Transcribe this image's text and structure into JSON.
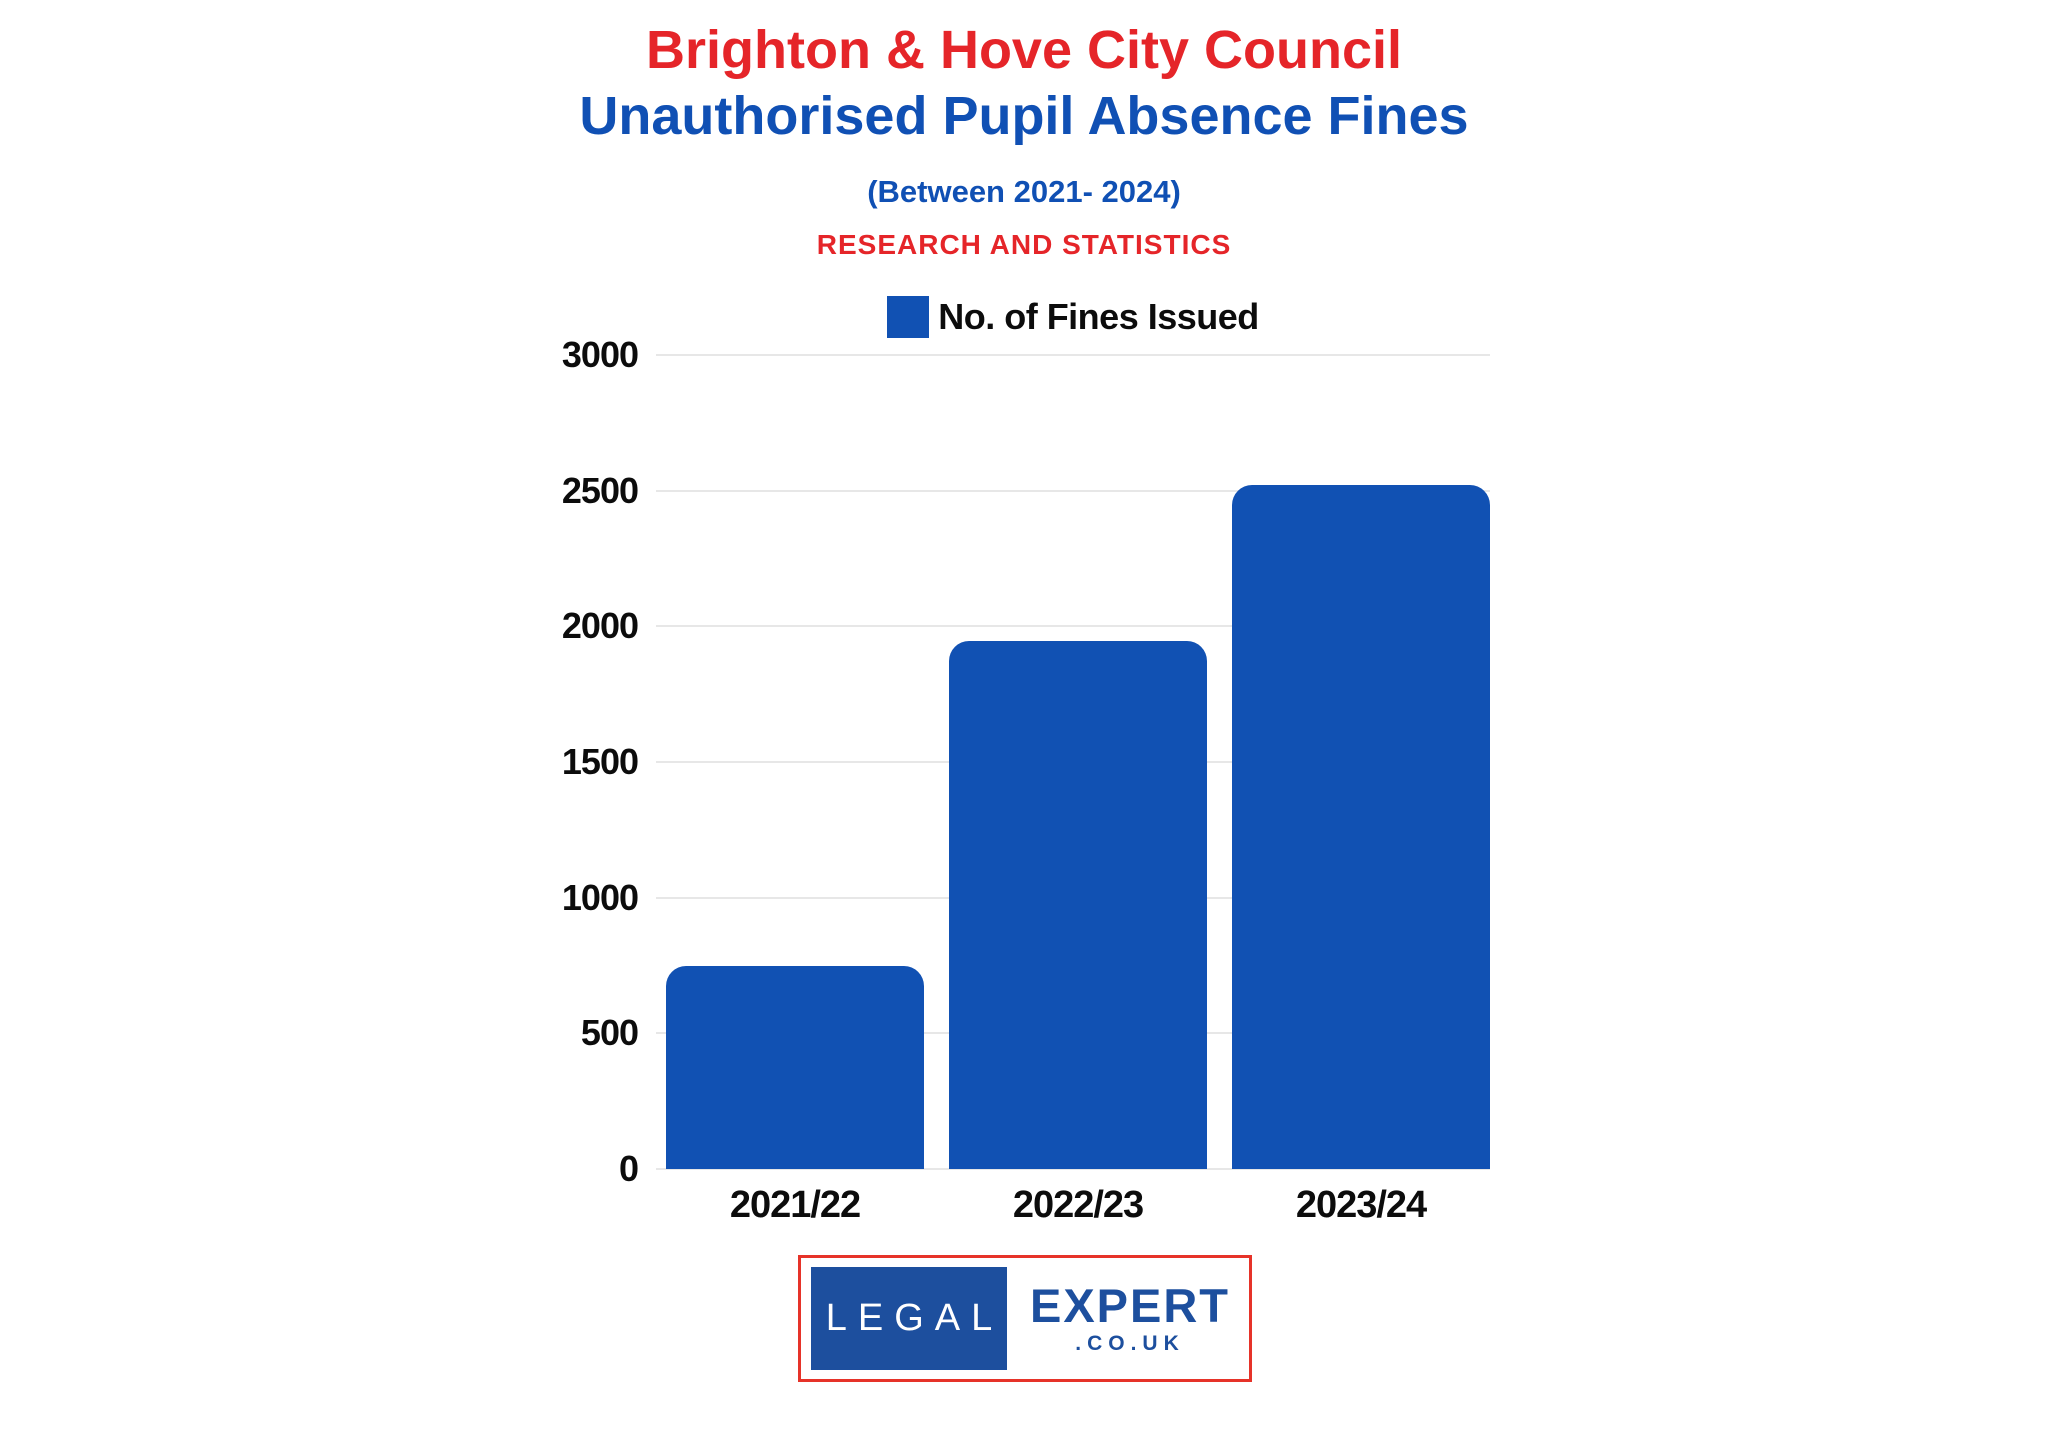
{
  "header": {
    "title_line1": "Brighton & Hove City Council",
    "title_line2": "Unauthorised Pupil Absence Fines",
    "subtitle": "(Between 2021- 2024)",
    "tagline": "RESEARCH AND STATISTICS",
    "title_line1_color": "#e52529",
    "title_line2_color": "#1050b4",
    "subtitle_color": "#1050b4",
    "tagline_color": "#e52529"
  },
  "legend": {
    "label": "No. of Fines Issued",
    "swatch_color": "#1151b3"
  },
  "chart_data": {
    "type": "bar",
    "title": "Brighton & Hove City Council Unauthorised Pupil Absence Fines (Between 2021- 2024)",
    "categories": [
      "2021/22",
      "2022/23",
      "2023/24"
    ],
    "series": [
      {
        "name": "No. of Fines Issued",
        "values": [
          750,
          1945,
          2520
        ]
      }
    ],
    "xlabel": "",
    "ylabel": "",
    "ylim": [
      0,
      3000
    ],
    "yticks": [
      0,
      500,
      1000,
      1500,
      2000,
      2500,
      3000
    ],
    "grid": true,
    "legend_position": "top",
    "bar_color": "#1151b3",
    "gridline_color": "#e7e7e7"
  },
  "footer_logo": {
    "left_text": "LEGAL",
    "right_text": "EXPERT",
    "domain_text": ".CO.UK",
    "border_color": "#e63329",
    "box_color": "#1d4f9e",
    "text_color": "#1d4f9e"
  }
}
